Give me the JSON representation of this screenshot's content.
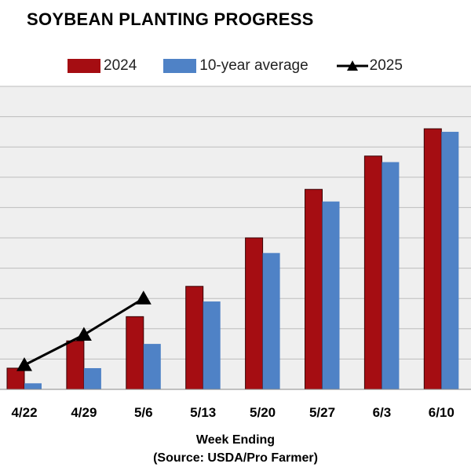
{
  "chart_data": {
    "type": "bar",
    "title": "SOYBEAN PLANTING PROGRESS",
    "xlabel": "Week Ending",
    "source": "(Source: USDA/Pro Farmer)",
    "categories": [
      "4/22",
      "4/29",
      "5/6",
      "5/13",
      "5/20",
      "5/27",
      "6/3",
      "6/10"
    ],
    "ylim": [
      0,
      100
    ],
    "grid": true,
    "legend_position": "top",
    "series": [
      {
        "name": "2024",
        "type": "bar",
        "color": "#a50d12",
        "values": [
          7,
          16,
          24,
          34,
          50,
          66,
          77,
          86
        ]
      },
      {
        "name": "10-year average",
        "type": "bar",
        "color": "#4f82c6",
        "values": [
          2,
          7,
          15,
          29,
          45,
          62,
          75,
          85
        ]
      },
      {
        "name": "2025",
        "type": "line",
        "color": "#000000",
        "marker": "triangle",
        "values": [
          8,
          18,
          30,
          null,
          null,
          null,
          null,
          null
        ]
      }
    ]
  }
}
